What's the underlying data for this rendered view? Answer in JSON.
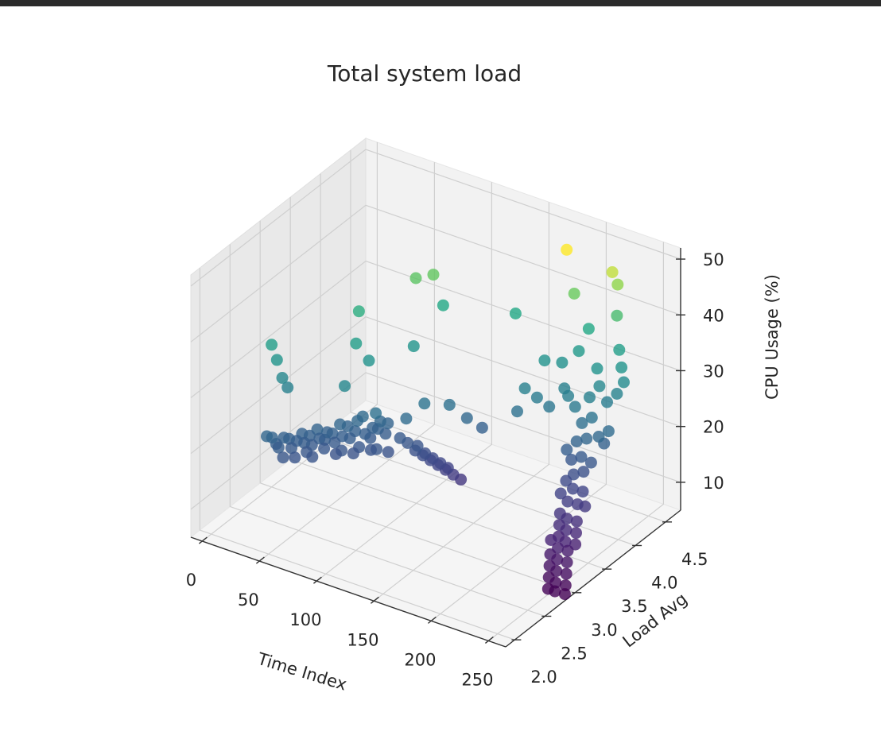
{
  "chart_data": {
    "type": "scatter",
    "projection": "3d",
    "title": "Total system load",
    "xlabel": "Time Index",
    "ylabel": "Load Avg",
    "zlabel": "CPU Usage (%)",
    "xticks": [
      "0",
      "50",
      "100",
      "150",
      "200",
      "250"
    ],
    "yticks": [
      "2.0",
      "2.5",
      "3.0",
      "3.5",
      "4.0",
      "4.5"
    ],
    "zticks": [
      "10",
      "20",
      "30",
      "40",
      "50"
    ],
    "xlim": [
      -10,
      265
    ],
    "ylim": [
      1.85,
      4.75
    ],
    "zlim": [
      5,
      52
    ],
    "grid": true,
    "colormap": "viridis",
    "color_by": "CPU Usage (%)",
    "marker_alpha": 0.8,
    "points": [
      [
        0,
        3.0,
        30.5
      ],
      [
        2,
        3.05,
        27.5
      ],
      [
        4,
        3.1,
        24.0
      ],
      [
        6,
        3.15,
        22.0
      ],
      [
        1,
        2.9,
        15.0
      ],
      [
        3,
        2.95,
        14.5
      ],
      [
        4,
        3.0,
        13.0
      ],
      [
        6,
        3.0,
        12.5
      ],
      [
        8,
        3.05,
        14.0
      ],
      [
        10,
        3.1,
        13.5
      ],
      [
        12,
        3.1,
        12.0
      ],
      [
        14,
        3.15,
        13.0
      ],
      [
        16,
        3.2,
        14.0
      ],
      [
        18,
        3.2,
        12.5
      ],
      [
        20,
        3.25,
        13.5
      ],
      [
        22,
        3.25,
        12.0
      ],
      [
        24,
        3.3,
        14.5
      ],
      [
        26,
        3.3,
        13.0
      ],
      [
        28,
        3.35,
        12.5
      ],
      [
        30,
        3.35,
        14.0
      ],
      [
        32,
        3.4,
        13.5
      ],
      [
        34,
        3.4,
        12.0
      ],
      [
        36,
        3.45,
        15.0
      ],
      [
        38,
        3.45,
        13.0
      ],
      [
        40,
        3.5,
        14.5
      ],
      [
        42,
        3.5,
        12.5
      ],
      [
        44,
        3.55,
        13.5
      ],
      [
        46,
        3.55,
        15.5
      ],
      [
        48,
        3.6,
        16.0
      ],
      [
        50,
        3.6,
        13.0
      ],
      [
        52,
        3.65,
        12.0
      ],
      [
        54,
        3.65,
        14.0
      ],
      [
        56,
        3.7,
        13.5
      ],
      [
        58,
        3.7,
        15.0
      ],
      [
        60,
        3.75,
        12.5
      ],
      [
        62,
        3.75,
        14.5
      ],
      [
        10,
        3.0,
        11.0
      ],
      [
        20,
        3.2,
        11.0
      ],
      [
        30,
        3.3,
        11.5
      ],
      [
        40,
        3.4,
        11.0
      ],
      [
        50,
        3.5,
        11.5
      ],
      [
        60,
        3.6,
        11.0
      ],
      [
        25,
        3.2,
        10.5
      ],
      [
        45,
        3.5,
        10.0
      ],
      [
        55,
        3.6,
        10.5
      ],
      [
        35,
        3.4,
        10.0
      ],
      [
        65,
        3.7,
        10.0
      ],
      [
        15,
        3.1,
        10.5
      ],
      [
        70,
        3.8,
        12.0
      ],
      [
        74,
        3.85,
        11.0
      ],
      [
        78,
        3.9,
        9.5
      ],
      [
        82,
        3.95,
        8.5
      ],
      [
        86,
        4.0,
        7.5
      ],
      [
        90,
        4.05,
        6.5
      ],
      [
        94,
        4.1,
        5.5
      ],
      [
        98,
        4.15,
        4.5
      ],
      [
        102,
        4.2,
        3.5
      ],
      [
        80,
        3.9,
        10.5
      ],
      [
        84,
        3.95,
        9.0
      ],
      [
        88,
        4.0,
        8.0
      ],
      [
        92,
        4.05,
        7.0
      ],
      [
        96,
        4.1,
        6.0
      ],
      [
        48,
        3.3,
        24.0
      ],
      [
        62,
        3.55,
        18.0
      ],
      [
        78,
        3.75,
        16.5
      ],
      [
        86,
        3.9,
        18.5
      ],
      [
        100,
        4.05,
        18.0
      ],
      [
        110,
        4.15,
        15.5
      ],
      [
        118,
        4.25,
        13.5
      ],
      [
        42,
        3.65,
        34.0
      ],
      [
        68,
        4.1,
        38.0
      ],
      [
        78,
        4.2,
        38.5
      ],
      [
        84,
        4.25,
        33.0
      ],
      [
        50,
        3.45,
        30.5
      ],
      [
        56,
        3.55,
        27.0
      ],
      [
        74,
        3.95,
        27.5
      ],
      [
        150,
        4.35,
        22.0
      ],
      [
        158,
        4.4,
        20.5
      ],
      [
        166,
        4.45,
        19.0
      ],
      [
        174,
        4.55,
        22.0
      ],
      [
        180,
        4.5,
        21.5
      ],
      [
        146,
        4.3,
        18.0
      ],
      [
        162,
        4.45,
        27.0
      ],
      [
        172,
        4.55,
        26.5
      ],
      [
        134,
        4.5,
        33.0
      ],
      [
        184,
        4.6,
        29.0
      ],
      [
        190,
        4.65,
        33.0
      ],
      [
        180,
        4.6,
        39.0
      ],
      [
        176,
        4.55,
        47.0
      ],
      [
        208,
        4.7,
        44.0
      ],
      [
        210,
        4.75,
        41.5
      ],
      [
        212,
        4.7,
        36.5
      ],
      [
        214,
        4.7,
        30.5
      ],
      [
        216,
        4.7,
        27.5
      ],
      [
        200,
        4.6,
        27.0
      ],
      [
        196,
        4.55,
        22.0
      ],
      [
        202,
        4.6,
        24.0
      ],
      [
        206,
        4.65,
        21.0
      ],
      [
        212,
        4.7,
        22.5
      ],
      [
        218,
        4.7,
        25.0
      ],
      [
        186,
        4.5,
        20.0
      ],
      [
        192,
        4.5,
        17.5
      ],
      [
        198,
        4.55,
        18.5
      ],
      [
        204,
        4.55,
        15.5
      ],
      [
        210,
        4.6,
        16.5
      ],
      [
        206,
        4.6,
        14.0
      ],
      [
        196,
        4.5,
        15.0
      ],
      [
        190,
        4.45,
        14.5
      ],
      [
        184,
        4.4,
        13.0
      ],
      [
        188,
        4.4,
        11.5
      ],
      [
        194,
        4.45,
        12.0
      ],
      [
        200,
        4.5,
        11.0
      ],
      [
        190,
        4.4,
        9.0
      ],
      [
        196,
        4.45,
        9.5
      ],
      [
        186,
        4.35,
        8.0
      ],
      [
        192,
        4.35,
        7.0
      ],
      [
        198,
        4.4,
        6.5
      ],
      [
        184,
        4.3,
        6.0
      ],
      [
        190,
        4.3,
        5.0
      ],
      [
        196,
        4.35,
        4.5
      ],
      [
        200,
        4.4,
        4.0
      ],
      [
        186,
        4.25,
        3.0
      ],
      [
        192,
        4.25,
        2.5
      ],
      [
        198,
        4.3,
        2.0
      ],
      [
        188,
        4.2,
        1.5
      ],
      [
        194,
        4.2,
        1.0
      ],
      [
        200,
        4.25,
        0.5
      ],
      [
        190,
        4.15,
        0.0
      ],
      [
        196,
        4.15,
        -0.5
      ],
      [
        202,
        4.2,
        -1.0
      ],
      [
        186,
        4.1,
        -0.5
      ],
      [
        192,
        4.1,
        -1.5
      ],
      [
        198,
        4.15,
        -2.0
      ],
      [
        188,
        4.05,
        -2.5
      ],
      [
        194,
        4.05,
        -3.0
      ],
      [
        200,
        4.1,
        -3.5
      ],
      [
        190,
        4.0,
        -4.0
      ],
      [
        196,
        4.0,
        -4.5
      ],
      [
        202,
        4.05,
        -5.0
      ],
      [
        192,
        3.95,
        -5.5
      ],
      [
        198,
        3.95,
        -6.0
      ],
      [
        204,
        4.0,
        -6.5
      ],
      [
        194,
        3.9,
        -7.0
      ],
      [
        200,
        3.9,
        -7.0
      ],
      [
        206,
        3.95,
        -7.5
      ]
    ]
  }
}
